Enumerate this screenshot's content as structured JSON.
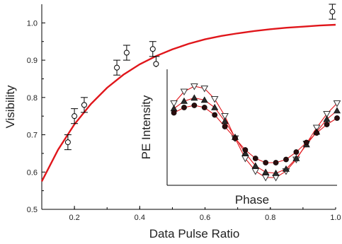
{
  "chart_data": [
    {
      "type": "scatter",
      "title": "",
      "xlabel": "Data Pulse Ratio",
      "ylabel": "Visibility",
      "xlim": [
        0.1,
        1.0
      ],
      "ylim": [
        0.5,
        1.05
      ],
      "xticks": [
        0.2,
        0.4,
        0.6,
        0.8,
        1.0
      ],
      "xtick_labels": [
        "0.2",
        "0.4",
        "0.6",
        "0.8",
        "1.0"
      ],
      "yticks": [
        0.5,
        0.6,
        0.7,
        0.8,
        0.9,
        1.0
      ],
      "ytick_labels": [
        "0.5",
        "0.6",
        "0.7",
        "0.8",
        "0.9",
        "1.0"
      ],
      "series": [
        {
          "marker": "open-circle",
          "x": [
            0.18,
            0.2,
            0.23,
            0.33,
            0.36,
            0.44,
            0.45,
            0.99
          ],
          "y": [
            0.68,
            0.75,
            0.78,
            0.88,
            0.92,
            0.93,
            0.89,
            1.03
          ],
          "yerr": [
            0.02,
            0.02,
            0.02,
            0.02,
            0.02,
            0.02,
            0.02,
            0.02
          ]
        }
      ],
      "fit_curve": {
        "color": "#e0161b",
        "x": [
          0.1,
          0.15,
          0.2,
          0.25,
          0.3,
          0.35,
          0.4,
          0.45,
          0.5,
          0.55,
          0.6,
          0.65,
          0.7,
          0.75,
          0.8,
          0.85,
          0.9,
          0.95,
          1.0
        ],
        "y": [
          0.575,
          0.66,
          0.728,
          0.782,
          0.826,
          0.861,
          0.889,
          0.911,
          0.929,
          0.944,
          0.956,
          0.965,
          0.972,
          0.978,
          0.983,
          0.987,
          0.99,
          0.993,
          0.995
        ]
      },
      "grid": false
    },
    {
      "type": "scatter",
      "title": "",
      "xlabel": "Phase",
      "ylabel": "PE Intensity",
      "inset": true,
      "xlim": [
        0,
        1
      ],
      "ylim": [
        0,
        1
      ],
      "series": [
        {
          "marker": "open-triangle-down",
          "x": [
            0.04,
            0.1,
            0.16,
            0.22,
            0.28,
            0.34,
            0.4,
            0.46,
            0.52,
            0.58,
            0.64,
            0.7,
            0.76,
            0.82,
            0.88,
            0.94,
            1.0
          ],
          "y": [
            0.72,
            0.83,
            0.88,
            0.86,
            0.76,
            0.6,
            0.39,
            0.2,
            0.08,
            0.02,
            0.02,
            0.08,
            0.19,
            0.34,
            0.49,
            0.62,
            0.72
          ]
        },
        {
          "marker": "filled-triangle-up",
          "x": [
            0.04,
            0.1,
            0.16,
            0.22,
            0.28,
            0.34,
            0.4,
            0.46,
            0.52,
            0.58,
            0.64,
            0.7,
            0.76,
            0.82,
            0.88,
            0.94,
            1.0
          ],
          "y": [
            0.67,
            0.74,
            0.77,
            0.75,
            0.68,
            0.55,
            0.4,
            0.25,
            0.13,
            0.07,
            0.06,
            0.1,
            0.2,
            0.33,
            0.45,
            0.57,
            0.65
          ]
        },
        {
          "marker": "filled-circle",
          "x": [
            0.04,
            0.1,
            0.16,
            0.22,
            0.28,
            0.34,
            0.4,
            0.46,
            0.52,
            0.58,
            0.64,
            0.7,
            0.76,
            0.82,
            0.88,
            0.94,
            1.0
          ],
          "y": [
            0.63,
            0.68,
            0.7,
            0.68,
            0.61,
            0.5,
            0.39,
            0.28,
            0.2,
            0.16,
            0.16,
            0.19,
            0.26,
            0.35,
            0.44,
            0.52,
            0.58
          ]
        }
      ],
      "grid": false
    }
  ]
}
